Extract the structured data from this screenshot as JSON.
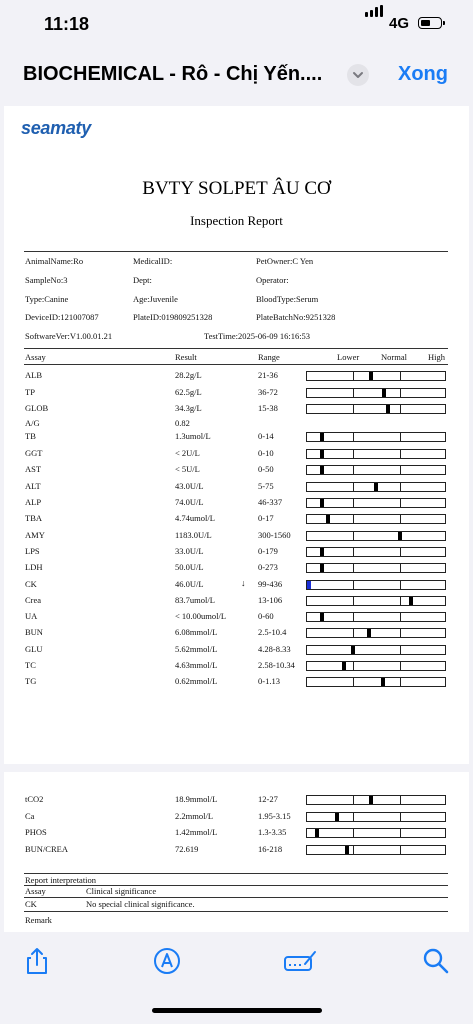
{
  "status_bar": {
    "time": "11:18",
    "network": "4G",
    "battery_level": 0.35
  },
  "nav": {
    "title": "BIOCHEMICAL - Rô - Chị Yến....",
    "done_label": "Xong"
  },
  "report": {
    "logo": "seamaty",
    "hospital": "BVTY SOLPET ÂU CƠ",
    "subtitle": "Inspection Report",
    "info": {
      "animal_name": "AnimalName:Ro",
      "medical_id": "MedicalID:",
      "pet_owner": "PetOwner:C Yen",
      "sample_no": "SampleNo:3",
      "dept": "Dept:",
      "operator": "Operator:",
      "type": "Type:Canine",
      "age": "Age:Juvenile",
      "blood_type": "BloodType:Serum",
      "device_id": "DeviceID:121007087",
      "plate_id": "PlateID:019809251328",
      "plate_batch": "PlateBatchNo:9251328",
      "software": "SoftwareVer:V1.00.01.21",
      "test_time": "TestTime:2025-06-09 16:16:53"
    },
    "headers": {
      "assay": "Assay",
      "result": "Result",
      "range": "Range",
      "lower": "Lower",
      "normal": "Normal",
      "high": "High"
    },
    "results_page1": [
      {
        "assay": "ALB",
        "result": "28.2g/L",
        "range": "21-36",
        "level": 0.46,
        "flag": ""
      },
      {
        "assay": "TP",
        "result": "62.5g/L",
        "range": "36-72",
        "level": 0.56,
        "flag": ""
      },
      {
        "assay": "GLOB",
        "result": "34.3g/L",
        "range": "15-38",
        "level": 0.59,
        "flag": ""
      },
      {
        "assay": "A/G",
        "result": "0.82",
        "range": "",
        "level": null,
        "flag": ""
      },
      {
        "assay": "TB",
        "result": "1.3umol/L",
        "range": "0-14",
        "level": 0.1,
        "flag": ""
      },
      {
        "assay": "GGT",
        "result": "< 2U/L",
        "range": "0-10",
        "level": 0.1,
        "flag": ""
      },
      {
        "assay": "AST",
        "result": "< 5U/L",
        "range": "0-50",
        "level": 0.1,
        "flag": ""
      },
      {
        "assay": "ALT",
        "result": "43.0U/L",
        "range": "5-75",
        "level": 0.5,
        "flag": ""
      },
      {
        "assay": "ALP",
        "result": "74.0U/L",
        "range": "46-337",
        "level": 0.1,
        "flag": ""
      },
      {
        "assay": "TBA",
        "result": "4.74umol/L",
        "range": "0-17",
        "level": 0.14,
        "flag": ""
      },
      {
        "assay": "AMY",
        "result": "1183.0U/L",
        "range": "300-1560",
        "level": 0.68,
        "flag": ""
      },
      {
        "assay": "LPS",
        "result": "33.0U/L",
        "range": "0-179",
        "level": 0.1,
        "flag": ""
      },
      {
        "assay": "LDH",
        "result": "50.0U/L",
        "range": "0-273",
        "level": 0.1,
        "flag": ""
      },
      {
        "assay": "CK",
        "result": "46.0U/L",
        "range": "99-436",
        "level": 0.0,
        "flag": "↓",
        "low": true
      },
      {
        "assay": "Crea",
        "result": "83.7umol/L",
        "range": "13-106",
        "level": 0.76,
        "flag": ""
      },
      {
        "assay": "UA",
        "result": "< 10.00umol/L",
        "range": "0-60",
        "level": 0.1,
        "flag": ""
      },
      {
        "assay": "BUN",
        "result": "6.08mmol/L",
        "range": "2.5-10.4",
        "level": 0.45,
        "flag": ""
      },
      {
        "assay": "GLU",
        "result": "5.62mmol/L",
        "range": "4.28-8.33",
        "level": 0.33,
        "flag": ""
      },
      {
        "assay": "TC",
        "result": "4.63mmol/L",
        "range": "2.58-10.34",
        "level": 0.26,
        "flag": ""
      },
      {
        "assay": "TG",
        "result": "0.62mmol/L",
        "range": "0-1.13",
        "level": 0.55,
        "flag": ""
      }
    ],
    "results_page2": [
      {
        "assay": "tCO2",
        "result": "18.9mmol/L",
        "range": "12-27",
        "level": 0.46,
        "flag": ""
      },
      {
        "assay": "Ca",
        "result": "2.2mmol/L",
        "range": "1.95-3.15",
        "level": 0.21,
        "flag": ""
      },
      {
        "assay": "PHOS",
        "result": "1.42mmol/L",
        "range": "1.3-3.35",
        "level": 0.06,
        "flag": ""
      },
      {
        "assay": "BUN/CREA",
        "result": "72.619",
        "range": "16-218",
        "level": 0.28,
        "flag": ""
      }
    ],
    "interpretation": {
      "title": "Report interpretation",
      "col_assay": "Assay",
      "col_significance": "Clinical significance",
      "rows": [
        {
          "assay": "CK",
          "significance": "No special clinical significance."
        }
      ],
      "remark": "Remark"
    }
  },
  "toolbar": {
    "icons": [
      "share-icon",
      "markup-icon",
      "signature-icon",
      "search-icon"
    ]
  }
}
